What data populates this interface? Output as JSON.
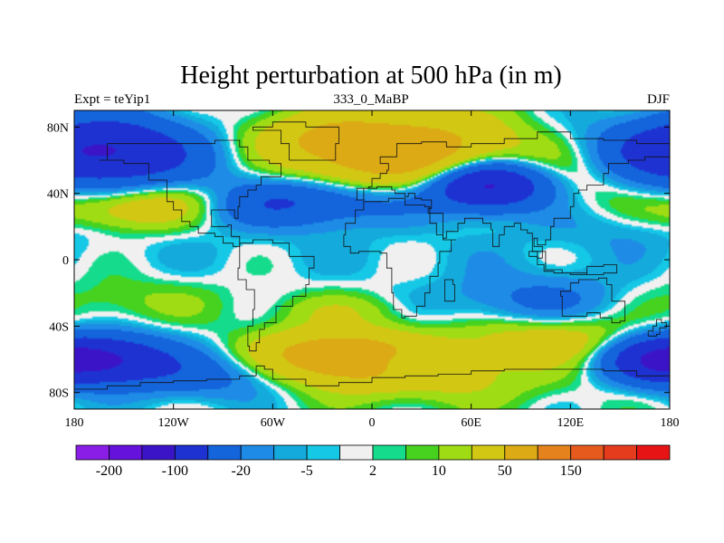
{
  "chart_data": {
    "type": "heatmap",
    "title": "Height perturbation at 500 hPa (in m)",
    "left_label": "Expt = teYip1",
    "center_label": "333_0_MaBP",
    "right_label": "DJF",
    "xlim": [
      -180,
      180
    ],
    "ylim": [
      -90,
      90
    ],
    "x_ticks": [
      {
        "value": -180,
        "label": "180"
      },
      {
        "value": -120,
        "label": "120W"
      },
      {
        "value": -60,
        "label": "60W"
      },
      {
        "value": 0,
        "label": "0"
      },
      {
        "value": 60,
        "label": "60E"
      },
      {
        "value": 120,
        "label": "120E"
      },
      {
        "value": 180,
        "label": "180"
      }
    ],
    "y_ticks": [
      {
        "value": 80,
        "label": "80N"
      },
      {
        "value": 40,
        "label": "40N"
      },
      {
        "value": 0,
        "label": "0"
      },
      {
        "value": -40,
        "label": "40S"
      },
      {
        "value": -80,
        "label": "80S"
      }
    ],
    "colorbar": {
      "colors": [
        "#8a1ee6",
        "#6412dc",
        "#3c14c8",
        "#1e32d2",
        "#1464dc",
        "#1e8ce6",
        "#14aadc",
        "#14c8e6",
        "#f0f0f0",
        "#14dc8c",
        "#46d21e",
        "#a0dc14",
        "#d2c814",
        "#dcaa14",
        "#e6821e",
        "#e65a1e",
        "#e63c1e",
        "#e61414"
      ],
      "tick_labels": [
        "-200",
        "-100",
        "-20",
        "-5",
        "2",
        "10",
        "50",
        "150"
      ]
    },
    "field": {
      "base": 0,
      "features": [
        {
          "lon": -165,
          "lat": 65,
          "amp": -110,
          "sx": 40,
          "sy": 14
        },
        {
          "lon": -140,
          "lat": 30,
          "amp": 45,
          "sx": 35,
          "sy": 9
        },
        {
          "lon": -110,
          "lat": 38,
          "amp": 30,
          "sx": 30,
          "sy": 8
        },
        {
          "lon": 15,
          "lat": 65,
          "amp": 85,
          "sx": 45,
          "sy": 16
        },
        {
          "lon": -40,
          "lat": 75,
          "amp": 20,
          "sx": 30,
          "sy": 10
        },
        {
          "lon": 70,
          "lat": 45,
          "amp": -120,
          "sx": 25,
          "sy": 10
        },
        {
          "lon": 130,
          "lat": 55,
          "amp": 20,
          "sx": 35,
          "sy": 16
        },
        {
          "lon": -60,
          "lat": 35,
          "amp": -60,
          "sx": 55,
          "sy": 10
        },
        {
          "lon": 150,
          "lat": 20,
          "amp": -10,
          "sx": 40,
          "sy": 10
        },
        {
          "lon": 0,
          "lat": 5,
          "amp": -4,
          "sx": 180,
          "sy": 12
        },
        {
          "lon": -150,
          "lat": -25,
          "amp": 12,
          "sx": 40,
          "sy": 10
        },
        {
          "lon": -20,
          "lat": -30,
          "amp": 14,
          "sx": 30,
          "sy": 7
        },
        {
          "lon": 100,
          "lat": -25,
          "amp": -25,
          "sx": 40,
          "sy": 12
        },
        {
          "lon": -160,
          "lat": -60,
          "amp": -90,
          "sx": 28,
          "sy": 10
        },
        {
          "lon": 170,
          "lat": -60,
          "amp": -70,
          "sx": 22,
          "sy": 10
        },
        {
          "lon": -100,
          "lat": -70,
          "amp": -30,
          "sx": 35,
          "sy": 10
        },
        {
          "lon": -20,
          "lat": -58,
          "amp": 80,
          "sx": 35,
          "sy": 11
        },
        {
          "lon": 40,
          "lat": -70,
          "amp": 25,
          "sx": 50,
          "sy": 12
        },
        {
          "lon": 110,
          "lat": -48,
          "amp": 35,
          "sx": 40,
          "sy": 10
        },
        {
          "lon": 15,
          "lat": -62,
          "amp": -25,
          "sx": 10,
          "sy": 6
        }
      ]
    },
    "contour_levels": [
      -250,
      -200,
      -150,
      -100,
      -50,
      -20,
      -10,
      -5,
      -2,
      2,
      5,
      10,
      20,
      50,
      100,
      150,
      200,
      250
    ],
    "coastlines": [
      {
        "name": "Antarctica",
        "points": [
          [
            -180,
            -78
          ],
          [
            -160,
            -76
          ],
          [
            -140,
            -74
          ],
          [
            -120,
            -73
          ],
          [
            -100,
            -72
          ],
          [
            -80,
            -70
          ],
          [
            -70,
            -64
          ],
          [
            -65,
            -66
          ],
          [
            -60,
            -72
          ],
          [
            -40,
            -76
          ],
          [
            -20,
            -74
          ],
          [
            0,
            -71
          ],
          [
            20,
            -70
          ],
          [
            40,
            -69
          ],
          [
            60,
            -67
          ],
          [
            80,
            -66
          ],
          [
            100,
            -66
          ],
          [
            120,
            -66
          ],
          [
            140,
            -67
          ],
          [
            160,
            -70
          ],
          [
            180,
            -78
          ]
        ]
      },
      {
        "name": "South America",
        "points": [
          [
            -80,
            10
          ],
          [
            -72,
            12
          ],
          [
            -60,
            10
          ],
          [
            -50,
            2
          ],
          [
            -35,
            -5
          ],
          [
            -38,
            -15
          ],
          [
            -40,
            -22
          ],
          [
            -48,
            -28
          ],
          [
            -58,
            -38
          ],
          [
            -65,
            -42
          ],
          [
            -68,
            -50
          ],
          [
            -70,
            -55
          ],
          [
            -74,
            -52
          ],
          [
            -75,
            -40
          ],
          [
            -72,
            -30
          ],
          [
            -71,
            -18
          ],
          [
            -76,
            -12
          ],
          [
            -81,
            -5
          ],
          [
            -80,
            0
          ],
          [
            -80,
            10
          ]
        ]
      },
      {
        "name": "North America",
        "points": [
          [
            -165,
            60
          ],
          [
            -160,
            70
          ],
          [
            -140,
            70
          ],
          [
            -120,
            70
          ],
          [
            -95,
            72
          ],
          [
            -80,
            68
          ],
          [
            -75,
            60
          ],
          [
            -62,
            58
          ],
          [
            -55,
            50
          ],
          [
            -67,
            45
          ],
          [
            -70,
            42
          ],
          [
            -75,
            38
          ],
          [
            -80,
            32
          ],
          [
            -81,
            25
          ],
          [
            -83,
            30
          ],
          [
            -90,
            30
          ],
          [
            -97,
            27
          ],
          [
            -97,
            20
          ],
          [
            -87,
            21
          ],
          [
            -85,
            14
          ],
          [
            -80,
            8
          ],
          [
            -84,
            10
          ],
          [
            -90,
            14
          ],
          [
            -95,
            16
          ],
          [
            -105,
            20
          ],
          [
            -110,
            23
          ],
          [
            -115,
            30
          ],
          [
            -120,
            35
          ],
          [
            -124,
            40
          ],
          [
            -124,
            48
          ],
          [
            -135,
            58
          ],
          [
            -150,
            60
          ],
          [
            -165,
            60
          ]
        ]
      },
      {
        "name": "Greenland",
        "points": [
          [
            -50,
            60
          ],
          [
            -42,
            60
          ],
          [
            -22,
            70
          ],
          [
            -20,
            80
          ],
          [
            -40,
            83
          ],
          [
            -60,
            80
          ],
          [
            -72,
            78
          ],
          [
            -55,
            70
          ],
          [
            -50,
            60
          ]
        ]
      },
      {
        "name": "Africa",
        "points": [
          [
            -17,
            15
          ],
          [
            -16,
            22
          ],
          [
            -10,
            30
          ],
          [
            -5,
            35
          ],
          [
            10,
            37
          ],
          [
            20,
            33
          ],
          [
            32,
            32
          ],
          [
            35,
            28
          ],
          [
            43,
            12
          ],
          [
            51,
            12
          ],
          [
            48,
            5
          ],
          [
            41,
            -2
          ],
          [
            40,
            -10
          ],
          [
            35,
            -20
          ],
          [
            32,
            -28
          ],
          [
            27,
            -34
          ],
          [
            20,
            -35
          ],
          [
            18,
            -30
          ],
          [
            13,
            -20
          ],
          [
            12,
            -5
          ],
          [
            9,
            4
          ],
          [
            5,
            5
          ],
          [
            -5,
            5
          ],
          [
            -8,
            4
          ],
          [
            -13,
            8
          ],
          [
            -17,
            15
          ]
        ]
      },
      {
        "name": "Madagascar",
        "points": [
          [
            44,
            -25
          ],
          [
            47,
            -25
          ],
          [
            50,
            -15
          ],
          [
            49,
            -12
          ],
          [
            44,
            -17
          ],
          [
            44,
            -25
          ]
        ]
      },
      {
        "name": "Eurasia",
        "points": [
          [
            -10,
            36
          ],
          [
            -9,
            43
          ],
          [
            -2,
            44
          ],
          [
            0,
            49
          ],
          [
            5,
            52
          ],
          [
            9,
            54
          ],
          [
            10,
            58
          ],
          [
            5,
            62
          ],
          [
            15,
            70
          ],
          [
            30,
            71
          ],
          [
            45,
            68
          ],
          [
            60,
            70
          ],
          [
            80,
            73
          ],
          [
            100,
            77
          ],
          [
            120,
            73
          ],
          [
            140,
            72
          ],
          [
            160,
            70
          ],
          [
            180,
            68
          ],
          [
            180,
            62
          ],
          [
            165,
            60
          ],
          [
            155,
            58
          ],
          [
            143,
            52
          ],
          [
            140,
            45
          ],
          [
            130,
            42
          ],
          [
            125,
            40
          ],
          [
            122,
            32
          ],
          [
            120,
            25
          ],
          [
            110,
            20
          ],
          [
            108,
            12
          ],
          [
            105,
            9
          ],
          [
            100,
            13
          ],
          [
            98,
            8
          ],
          [
            103,
            1
          ],
          [
            100,
            5
          ],
          [
            97,
            16
          ],
          [
            94,
            18
          ],
          [
            90,
            22
          ],
          [
            86,
            20
          ],
          [
            80,
            15
          ],
          [
            77,
            8
          ],
          [
            73,
            18
          ],
          [
            72,
            22
          ],
          [
            67,
            25
          ],
          [
            57,
            25
          ],
          [
            56,
            22
          ],
          [
            52,
            17
          ],
          [
            45,
            13
          ],
          [
            43,
            15
          ],
          [
            39,
            22
          ],
          [
            35,
            28
          ],
          [
            34,
            31
          ],
          [
            36,
            36
          ],
          [
            30,
            37
          ],
          [
            26,
            40
          ],
          [
            22,
            38
          ],
          [
            20,
            40
          ],
          [
            14,
            42
          ],
          [
            12,
            44
          ],
          [
            10,
            44
          ],
          [
            3,
            43
          ],
          [
            -5,
            36
          ],
          [
            -10,
            36
          ]
        ]
      },
      {
        "name": "Maritime Continent",
        "points": [
          [
            95,
            5
          ],
          [
            105,
            -6
          ],
          [
            115,
            -8
          ],
          [
            120,
            -9
          ],
          [
            130,
            -4
          ],
          [
            140,
            -3
          ],
          [
            148,
            -8
          ],
          [
            140,
            -9
          ],
          [
            130,
            -8
          ],
          [
            118,
            -8
          ],
          [
            110,
            -7
          ],
          [
            104,
            -3
          ],
          [
            100,
            2
          ],
          [
            95,
            5
          ]
        ]
      },
      {
        "name": "Australia",
        "points": [
          [
            114,
            -22
          ],
          [
            115,
            -34
          ],
          [
            120,
            -34
          ],
          [
            130,
            -32
          ],
          [
            138,
            -35
          ],
          [
            145,
            -38
          ],
          [
            150,
            -37
          ],
          [
            153,
            -28
          ],
          [
            153,
            -25
          ],
          [
            145,
            -15
          ],
          [
            142,
            -11
          ],
          [
            137,
            -12
          ],
          [
            130,
            -12
          ],
          [
            125,
            -14
          ],
          [
            120,
            -19
          ],
          [
            114,
            -22
          ]
        ]
      },
      {
        "name": "New Zealand",
        "points": [
          [
            167,
            -46
          ],
          [
            172,
            -45
          ],
          [
            174,
            -41
          ],
          [
            178,
            -38
          ],
          [
            175,
            -36
          ],
          [
            172,
            -40
          ],
          [
            170,
            -43
          ],
          [
            167,
            -46
          ]
        ]
      }
    ]
  }
}
